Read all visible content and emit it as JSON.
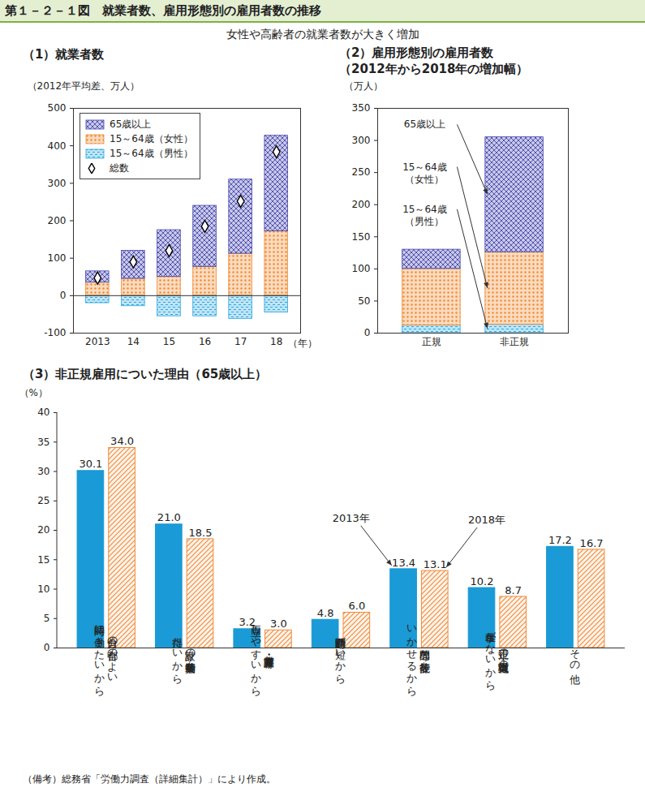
{
  "title": "第１－２－１図　就業者数、雇用形態別の雇用者数の推移",
  "subtitle": "女性や高齢者の就業者数が大きく増加",
  "note": "（備考）総務省「労働力調査（詳細集計）」により作成。",
  "chart_data": [
    {
      "type": "bar",
      "title": "（1）就業者数",
      "ylabel": "（2012年平均差、万人）",
      "xlabel": "（年）",
      "categories": [
        "2013",
        "14",
        "15",
        "16",
        "17",
        "18"
      ],
      "stacked": true,
      "legend": "top-left",
      "series": [
        {
          "name": "15～64歳（男性）",
          "color": "#2aa8e0",
          "values": [
            -20,
            -28,
            -55,
            -55,
            -62,
            -45
          ]
        },
        {
          "name": "15～64歳（女性）",
          "color": "#f08a30",
          "values": [
            35,
            45,
            50,
            77,
            112,
            172
          ]
        },
        {
          "name": "65歳以上",
          "color": "#4848b0",
          "values": [
            30,
            75,
            125,
            163,
            198,
            255
          ]
        },
        {
          "name": "総数",
          "type": "scatter",
          "marker": "diamond",
          "color": "#000000",
          "values": [
            47,
            90,
            120,
            185,
            252,
            384
          ]
        }
      ],
      "ylim": [
        -100,
        500
      ],
      "yticks": [
        -100,
        0,
        100,
        200,
        300,
        400,
        500
      ]
    },
    {
      "type": "bar",
      "title": "（2）雇用形態別の雇用者数",
      "subtitle": "（2012年から2018年の増加幅）",
      "ylabel": "（万人）",
      "categories": [
        "正規",
        "非正規"
      ],
      "stacked": true,
      "series": [
        {
          "name": "15～64歳（男性）",
          "color": "#2aa8e0",
          "values": [
            12,
            13
          ]
        },
        {
          "name": "15～64歳（女性）",
          "color": "#f08a30",
          "values": [
            88,
            113
          ]
        },
        {
          "name": "65歳以上",
          "color": "#4848b0",
          "values": [
            30,
            179
          ]
        }
      ],
      "ylim": [
        0,
        350
      ],
      "yticks": [
        0,
        50,
        100,
        150,
        200,
        250,
        300,
        350
      ]
    },
    {
      "type": "bar",
      "title": "（3）非正規雇用についた理由（65歳以上）",
      "ylabel": "（%）",
      "categories": [
        "自分の都合のよい\n時間に働きたいから",
        "家計の補助・学費等を\n得たいから",
        "家事・育児・介護等と\n両立しやすいから",
        "通勤時間が短いから",
        "専門的な技能等を\nいかせるから",
        "正規の職員・従業員の\n仕事がないから",
        "その他"
      ],
      "data_labels": true,
      "series": [
        {
          "name": "2013年",
          "color": "#1a9ad6",
          "values": [
            30.1,
            21.0,
            3.2,
            4.8,
            13.4,
            10.2,
            17.2
          ],
          "value_labels": [
            "30.1",
            "21.0",
            "3.2",
            "4.8",
            "13.4",
            "10.2",
            "17.2"
          ]
        },
        {
          "name": "2018年",
          "color": "#f08c3a",
          "values": [
            34.0,
            18.5,
            3.0,
            6.0,
            13.1,
            8.7,
            16.7
          ],
          "value_labels": [
            "34.0",
            "18.5",
            "3.0",
            "6.0",
            "13.1",
            "8.7",
            "16.7"
          ]
        }
      ],
      "ylim": [
        0,
        40
      ],
      "yticks": [
        0,
        5,
        10,
        15,
        20,
        25,
        30,
        35,
        40
      ]
    }
  ]
}
